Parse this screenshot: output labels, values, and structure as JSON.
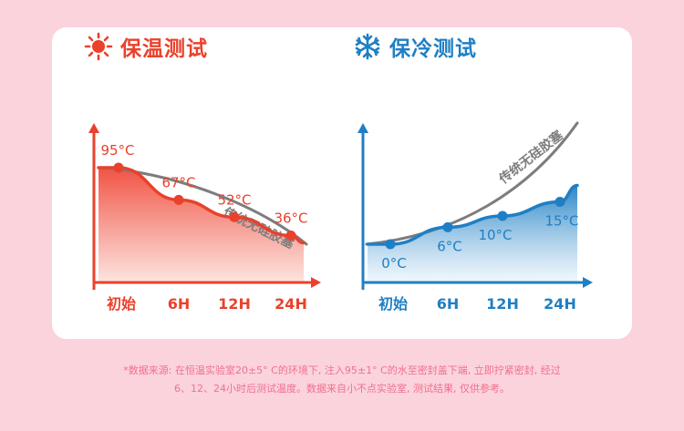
{
  "hot": {
    "title": "保温测试",
    "icon": "sun-icon",
    "color": "#e9412c"
  },
  "cold": {
    "title": "保冷测试",
    "icon": "snowflake-icon",
    "color": "#1f7fc4"
  },
  "footnote": {
    "line1": "*数据来源: 在恒温实验室20±5° C的环境下, 注入95±1° C的水至密封盖下端, 立即拧紧密封, 经过",
    "line2": "6、12、24小时后测试温度。数据来自小不点实验室, 测试结果, 仅供参考。"
  },
  "chart_data": [
    {
      "type": "line",
      "categories": [
        "初始",
        "6H",
        "12H",
        "24H"
      ],
      "series": [
        {
          "values": [
            95,
            67,
            52,
            36
          ],
          "labels": [
            "95°C",
            "67°C",
            "52°C",
            "36°C"
          ],
          "color": "#e9412c"
        },
        {
          "name": "传统无硅胶塞",
          "color": "#7d7d7d"
        }
      ]
    },
    {
      "type": "line",
      "categories": [
        "初始",
        "6H",
        "12H",
        "24H"
      ],
      "series": [
        {
          "values": [
            0,
            6,
            10,
            15
          ],
          "labels": [
            "0°C",
            "6°C",
            "10°C",
            "15°C"
          ],
          "color": "#1f7fc4"
        },
        {
          "name": "传统无硅胶塞",
          "color": "#7d7d7d"
        }
      ]
    }
  ]
}
